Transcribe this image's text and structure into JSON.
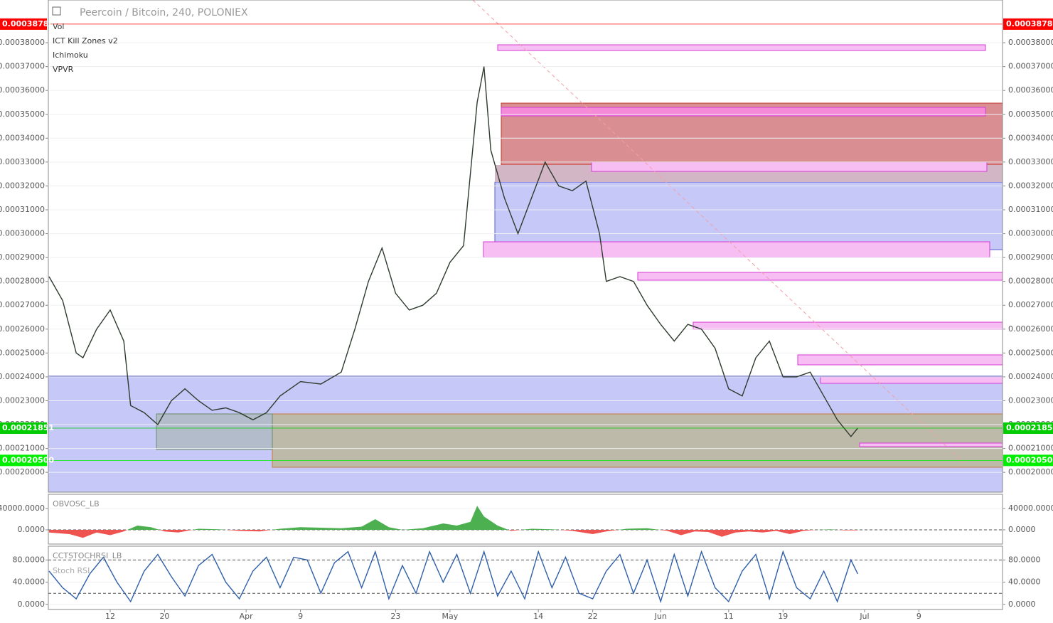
{
  "chart_data": [
    {
      "type": "line",
      "title": "Peercoin / Bitcoin, 240, POLONIEX",
      "indicators": [
        "Vol",
        "ICT Kill Zones v2",
        "Ichimoku",
        "VPVR"
      ],
      "color": "#2e3b2e",
      "x": [
        3,
        5,
        7,
        8,
        10,
        12,
        14,
        15,
        17,
        19,
        21,
        23,
        25,
        27,
        29,
        31,
        33,
        35,
        37,
        40,
        43,
        46,
        48,
        50,
        52,
        54,
        56,
        58,
        60,
        62,
        64,
        66,
        67,
        68,
        70,
        72,
        74,
        76,
        78,
        80,
        82,
        84,
        85,
        87,
        89,
        91,
        93,
        95,
        97,
        99,
        101,
        103,
        105,
        107,
        109,
        111,
        113,
        115,
        117,
        119,
        121,
        122
      ],
      "values": [
        0.000282,
        0.000272,
        0.00025,
        0.000248,
        0.00026,
        0.000268,
        0.000255,
        0.000228,
        0.000225,
        0.00022,
        0.00023,
        0.000235,
        0.00023,
        0.000226,
        0.000227,
        0.000225,
        0.000222,
        0.000225,
        0.000232,
        0.000238,
        0.000237,
        0.000242,
        0.00026,
        0.00028,
        0.000294,
        0.000275,
        0.000268,
        0.00027,
        0.000275,
        0.000288,
        0.000295,
        0.000355,
        0.00037,
        0.000335,
        0.000315,
        0.0003,
        0.000315,
        0.00033,
        0.00032,
        0.000318,
        0.000322,
        0.0003,
        0.00028,
        0.000282,
        0.00028,
        0.00027,
        0.000262,
        0.000255,
        0.000262,
        0.00026,
        0.000252,
        0.000235,
        0.000232,
        0.000248,
        0.000255,
        0.00024,
        0.00024,
        0.000242,
        0.000232,
        0.000222,
        0.000215,
        0.00021851
      ],
      "xlim": [
        2.9,
        143.3
      ],
      "ylim": [
        0.0001917,
        0.0003979
      ],
      "yticks": [
        {
          "value": 0.0002,
          "label": "0.00020000"
        },
        {
          "value": 0.00021,
          "label": "0.00021000"
        },
        {
          "value": 0.00022,
          "label": "0.00022000"
        },
        {
          "value": 0.00023,
          "label": "0.00023000"
        },
        {
          "value": 0.00024,
          "label": "0.00024000"
        },
        {
          "value": 0.00025,
          "label": "0.00025000"
        },
        {
          "value": 0.00026,
          "label": "0.00026000"
        },
        {
          "value": 0.00027,
          "label": "0.00027000"
        },
        {
          "value": 0.00028,
          "label": "0.00028000"
        },
        {
          "value": 0.00029,
          "label": "0.00029000"
        },
        {
          "value": 0.0003,
          "label": "0.00030000"
        },
        {
          "value": 0.00031,
          "label": "0.00031000"
        },
        {
          "value": 0.00032,
          "label": "0.00032000"
        },
        {
          "value": 0.00033,
          "label": "0.00033000"
        },
        {
          "value": 0.00034,
          "label": "0.00034000"
        },
        {
          "value": 0.00035,
          "label": "0.00035000"
        },
        {
          "value": 0.00036,
          "label": "0.00036000"
        },
        {
          "value": 0.00037,
          "label": "0.00037000"
        },
        {
          "value": 0.00038,
          "label": "0.00038000"
        }
      ],
      "price_labels": [
        {
          "value": 0.0003878,
          "label": "0.00038780",
          "color": "#ff0000"
        },
        {
          "value": 0.00021851,
          "label": "0.00021851",
          "color": "#00cc00"
        },
        {
          "value": 0.000205,
          "label": "0.00020500",
          "color": "#00ee00"
        }
      ]
    },
    {
      "type": "area",
      "title": "OBVOSC_LB",
      "colors": [
        "#4caf50",
        "#ef5350"
      ],
      "x": [
        3,
        6,
        8,
        10,
        12,
        14,
        16,
        18,
        20,
        22,
        25,
        28,
        31,
        34,
        37,
        40,
        43,
        46,
        49,
        51,
        53,
        55,
        58,
        61,
        63,
        65,
        66,
        67,
        69,
        71,
        74,
        77,
        80,
        83,
        85,
        88,
        91,
        94,
        96,
        98,
        100,
        102,
        104,
        106,
        108,
        110,
        112,
        114,
        116,
        118,
        120,
        122
      ],
      "values": [
        -5000,
        -8000,
        -15000,
        -5000,
        -10000,
        -3000,
        8000,
        5000,
        -3000,
        -5000,
        2000,
        1000,
        -2000,
        -3000,
        2000,
        5000,
        4000,
        3000,
        6000,
        20000,
        5000,
        0,
        3000,
        12000,
        8000,
        15000,
        45000,
        25000,
        8000,
        -2000,
        2000,
        1000,
        -2000,
        -8000,
        -3000,
        2000,
        3000,
        -2000,
        -10000,
        -3000,
        -4000,
        -13000,
        -5000,
        -3000,
        -5000,
        -2000,
        -8000,
        -2000,
        0,
        1000,
        -1000,
        -1000
      ],
      "xlim": [
        2.9,
        143.3
      ],
      "ylim": [
        -26667,
        66667
      ],
      "yticks": [
        {
          "value": 40000,
          "label": "40000.0000"
        },
        {
          "value": 0,
          "label": "0.0000"
        }
      ],
      "hlines": [
        0
      ]
    },
    {
      "type": "line",
      "title": "CCTSTOCHRSI_LB",
      "subtitle": "Stoch RSI",
      "color": "#2f5fa8",
      "x": [
        3,
        5,
        7,
        9,
        11,
        13,
        15,
        17,
        19,
        21,
        23,
        25,
        27,
        29,
        31,
        33,
        35,
        37,
        39,
        41,
        43,
        45,
        47,
        49,
        51,
        53,
        55,
        57,
        59,
        61,
        63,
        65,
        67,
        69,
        71,
        73,
        75,
        77,
        79,
        81,
        83,
        85,
        87,
        89,
        91,
        93,
        95,
        97,
        99,
        101,
        103,
        105,
        107,
        109,
        111,
        113,
        115,
        117,
        119,
        121,
        122
      ],
      "values": [
        60,
        30,
        10,
        55,
        85,
        40,
        5,
        60,
        90,
        50,
        15,
        70,
        90,
        40,
        10,
        60,
        85,
        30,
        85,
        80,
        20,
        75,
        95,
        30,
        95,
        10,
        70,
        20,
        95,
        40,
        90,
        20,
        95,
        15,
        60,
        10,
        95,
        30,
        85,
        20,
        10,
        60,
        90,
        20,
        80,
        5,
        90,
        15,
        95,
        30,
        5,
        60,
        90,
        10,
        95,
        30,
        10,
        60,
        5,
        80,
        55
      ],
      "xlim": [
        2.9,
        143.3
      ],
      "ylim": [
        -9.2,
        104.9
      ],
      "yticks": [
        {
          "value": 80,
          "label": "80.0000"
        },
        {
          "value": 40,
          "label": "40.0000"
        },
        {
          "value": 0,
          "label": "0.0000"
        }
      ],
      "hlines": [
        80,
        20
      ],
      "xticks": [
        {
          "value": 12,
          "label": "12"
        },
        {
          "value": 20,
          "label": "20"
        },
        {
          "value": 32,
          "label": "Apr"
        },
        {
          "value": 40,
          "label": "9"
        },
        {
          "value": 54,
          "label": "23"
        },
        {
          "value": 62,
          "label": "May"
        },
        {
          "value": 75,
          "label": "14"
        },
        {
          "value": 83,
          "label": "22"
        },
        {
          "value": 93,
          "label": "Jun"
        },
        {
          "value": 103,
          "label": "11"
        },
        {
          "value": 111,
          "label": "19"
        },
        {
          "value": 123,
          "label": "Jul"
        },
        {
          "value": 131,
          "label": "9"
        }
      ]
    }
  ]
}
